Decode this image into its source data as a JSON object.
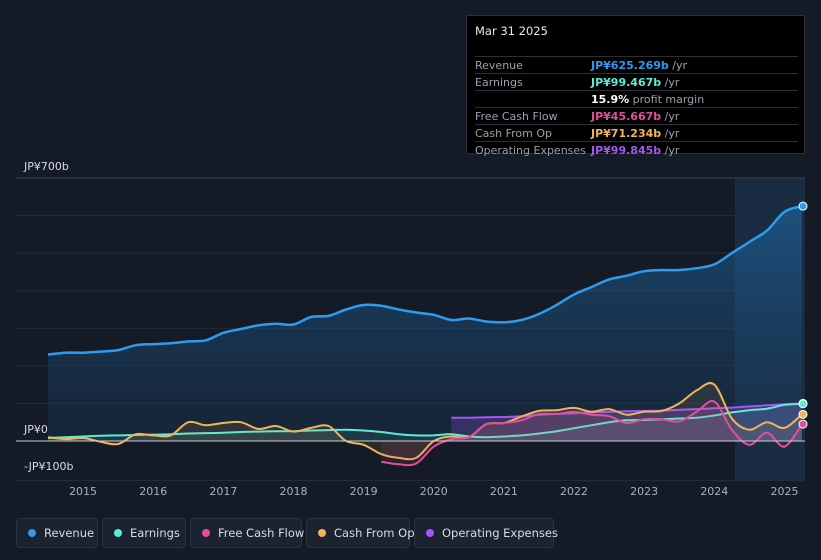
{
  "tooltip": {
    "date": "Mar 31 2025",
    "rows": [
      {
        "label": "Revenue",
        "value": "JP¥625.269b",
        "unit": " /yr",
        "color": "#2d9cf0"
      },
      {
        "label": "Earnings",
        "value": "JP¥99.467b",
        "unit": " /yr",
        "color": "#5eead4"
      },
      {
        "label": "",
        "value": "15.9%",
        "unit": " profit margin",
        "color": "#ffffff"
      },
      {
        "label": "Free Cash Flow",
        "value": "JP¥45.667b",
        "unit": " /yr",
        "color": "#e0509a"
      },
      {
        "label": "Cash From Op",
        "value": "JP¥71.234b",
        "unit": " /yr",
        "color": "#f0b45a"
      },
      {
        "label": "Operating Expenses",
        "value": "JP¥99.845b",
        "unit": " /yr",
        "color": "#a855f7"
      }
    ]
  },
  "legend": [
    {
      "label": "Revenue",
      "color": "#2d9cf0"
    },
    {
      "label": "Earnings",
      "color": "#5eead4"
    },
    {
      "label": "Free Cash Flow",
      "color": "#e0509a"
    },
    {
      "label": "Cash From Op",
      "color": "#f0b45a"
    },
    {
      "label": "Operating Expenses",
      "color": "#a855f7"
    }
  ],
  "chart_data": {
    "type": "area",
    "title": "",
    "xlabel": "",
    "ylabel": "",
    "y_top_label": "JP¥700b",
    "y_zero_label": "JP¥0",
    "y_bottom_label": "-JP¥100b",
    "ylim": [
      -100,
      700
    ],
    "xlim": [
      2014.5,
      2025.25
    ],
    "xticks": [
      "2015",
      "2016",
      "2017",
      "2018",
      "2019",
      "2020",
      "2021",
      "2022",
      "2023",
      "2024",
      "2025"
    ],
    "xtick_values": [
      2015,
      2016,
      2017,
      2018,
      2019,
      2020,
      2021,
      2022,
      2023,
      2024,
      2025
    ],
    "highlight_from": 2024.25,
    "series": [
      {
        "name": "Revenue",
        "color": "#2d9cf0",
        "x": [
          2014.5,
          2014.75,
          2015.0,
          2015.25,
          2015.5,
          2015.75,
          2016.0,
          2016.25,
          2016.5,
          2016.75,
          2017.0,
          2017.25,
          2017.5,
          2017.75,
          2018.0,
          2018.25,
          2018.5,
          2018.75,
          2019.0,
          2019.25,
          2019.5,
          2019.75,
          2020.0,
          2020.25,
          2020.5,
          2020.75,
          2021.0,
          2021.25,
          2021.5,
          2021.75,
          2022.0,
          2022.25,
          2022.5,
          2022.75,
          2023.0,
          2023.25,
          2023.5,
          2023.75,
          2024.0,
          2024.25,
          2024.5,
          2024.75,
          2025.0,
          2025.25
        ],
        "values": [
          230,
          235,
          235,
          238,
          242,
          255,
          258,
          260,
          265,
          268,
          288,
          298,
          308,
          312,
          310,
          330,
          333,
          350,
          362,
          360,
          350,
          342,
          336,
          322,
          326,
          318,
          316,
          322,
          338,
          362,
          390,
          410,
          430,
          440,
          452,
          455,
          455,
          460,
          470,
          500,
          530,
          560,
          610,
          625
        ]
      },
      {
        "name": "Earnings",
        "color": "#5eead4",
        "x": [
          2014.5,
          2014.75,
          2015.0,
          2015.25,
          2015.5,
          2015.75,
          2016.0,
          2016.25,
          2016.5,
          2016.75,
          2017.0,
          2017.25,
          2017.5,
          2017.75,
          2018.0,
          2018.25,
          2018.5,
          2018.75,
          2019.0,
          2019.25,
          2019.5,
          2019.75,
          2020.0,
          2020.25,
          2020.5,
          2020.75,
          2021.0,
          2021.25,
          2021.5,
          2021.75,
          2022.0,
          2022.25,
          2022.5,
          2022.75,
          2023.0,
          2023.25,
          2023.5,
          2023.75,
          2024.0,
          2024.25,
          2024.5,
          2024.75,
          2025.0,
          2025.25
        ],
        "values": [
          8,
          10,
          12,
          14,
          15,
          16,
          17,
          18,
          20,
          21,
          22,
          24,
          25,
          26,
          26,
          28,
          29,
          30,
          28,
          24,
          18,
          15,
          15,
          18,
          12,
          10,
          12,
          15,
          20,
          26,
          34,
          42,
          50,
          55,
          56,
          58,
          60,
          62,
          68,
          76,
          82,
          86,
          96,
          99
        ]
      },
      {
        "name": "Free Cash Flow",
        "color": "#e0509a",
        "x": [
          2019.25,
          2019.5,
          2019.75,
          2020.0,
          2020.25,
          2020.5,
          2020.75,
          2021.0,
          2021.25,
          2021.5,
          2021.75,
          2022.0,
          2022.25,
          2022.5,
          2022.75,
          2023.0,
          2023.25,
          2023.5,
          2023.75,
          2024.0,
          2024.25,
          2024.5,
          2024.75,
          2025.0,
          2025.25
        ],
        "values": [
          -55,
          -62,
          -60,
          -15,
          5,
          10,
          45,
          48,
          55,
          72,
          72,
          78,
          70,
          66,
          48,
          58,
          58,
          52,
          78,
          105,
          30,
          -10,
          22,
          -15,
          45
        ]
      },
      {
        "name": "Cash From Op",
        "color": "#f0b45a",
        "x": [
          2014.5,
          2014.75,
          2015.0,
          2015.25,
          2015.5,
          2015.75,
          2016.0,
          2016.25,
          2016.5,
          2016.75,
          2017.0,
          2017.25,
          2017.5,
          2017.75,
          2018.0,
          2018.25,
          2018.5,
          2018.75,
          2019.0,
          2019.25,
          2019.5,
          2019.75,
          2020.0,
          2020.25,
          2020.5,
          2020.75,
          2021.0,
          2021.25,
          2021.5,
          2021.75,
          2022.0,
          2022.25,
          2022.5,
          2022.75,
          2023.0,
          2023.25,
          2023.5,
          2023.75,
          2024.0,
          2024.25,
          2024.5,
          2024.75,
          2025.0,
          2025.25
        ],
        "values": [
          10,
          5,
          8,
          -2,
          -8,
          18,
          15,
          15,
          50,
          42,
          48,
          50,
          32,
          40,
          25,
          35,
          40,
          0,
          -10,
          -35,
          -45,
          -45,
          0,
          12,
          10,
          45,
          48,
          65,
          80,
          82,
          88,
          78,
          85,
          70,
          78,
          80,
          100,
          135,
          150,
          60,
          30,
          50,
          35,
          71
        ]
      },
      {
        "name": "Operating Expenses",
        "color": "#a855f7",
        "x": [
          2020.25,
          2020.5,
          2020.75,
          2021.0,
          2021.25,
          2021.5,
          2021.75,
          2022.0,
          2022.25,
          2022.5,
          2022.75,
          2023.0,
          2023.25,
          2023.5,
          2023.75,
          2024.0,
          2024.25,
          2024.5,
          2024.75,
          2025.0,
          2025.25
        ],
        "values": [
          62,
          62,
          63,
          64,
          66,
          70,
          72,
          74,
          76,
          78,
          79,
          80,
          81,
          83,
          85,
          87,
          89,
          92,
          95,
          98,
          100
        ]
      }
    ]
  }
}
